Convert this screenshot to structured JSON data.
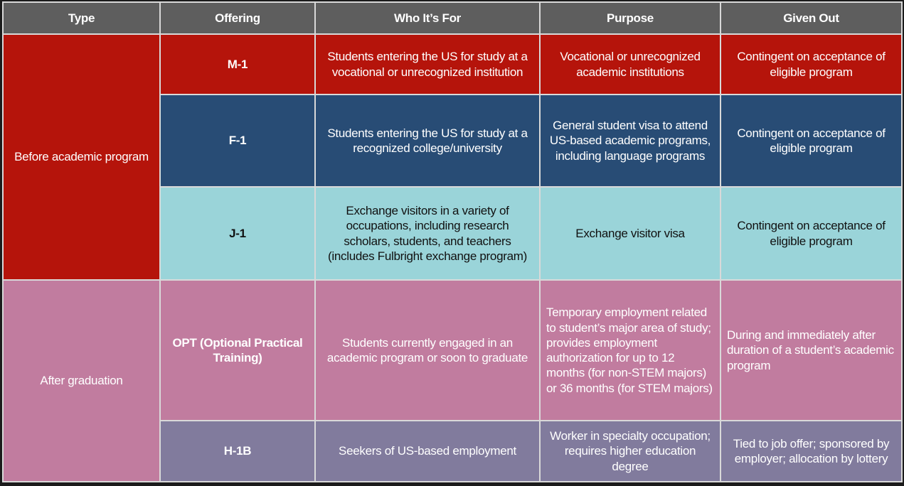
{
  "headers": {
    "type": "Type",
    "offering": "Offering",
    "who": "Who It’s For",
    "purpose": "Purpose",
    "given": "Given Out"
  },
  "groups": {
    "before": "Before academic program",
    "after": "After graduation"
  },
  "rows": [
    {
      "offering": "M-1",
      "who": "Students entering the US for study at a vocational or unrecognized institution",
      "purpose": "Vocational or unrecognized academic institutions",
      "given": "Contingent on acceptance of eligible program"
    },
    {
      "offering": "F-1",
      "who": "Students entering the US for study at a recognized college/university",
      "purpose": "General student visa to attend US-based academic programs, including language programs",
      "given": "Contingent on acceptance of eligible program"
    },
    {
      "offering": "J-1",
      "who": "Exchange visitors in a variety of occupations, including research scholars, students, and teachers (includes Fulbright exchange program)",
      "purpose": "Exchange visitor visa",
      "given": "Contingent on acceptance of eligible program"
    },
    {
      "offering": "OPT (Optional Practical Training)",
      "who": "Students currently engaged in an academic program or soon to graduate",
      "purpose": "Temporary employment related to student’s major area of study; provides employment authorization for up to 12 months (for non-STEM majors) or 36 months (for STEM majors)",
      "given": "During and immediately after duration of a student’s academic program"
    },
    {
      "offering": "H-1B",
      "who": "Seekers of US-based employment",
      "purpose": "Worker in specialty occupation; requires higher education degree",
      "given": "Tied to job offer; sponsored by employer; allocation by lottery"
    }
  ],
  "colors": {
    "header": "#5e5e5e",
    "before": "#222222",
    "after": "#444444",
    "m1": "#b5140b",
    "f1": "#284c75",
    "j1": "#9ad4d9",
    "opt": "#c17c9f",
    "h1b": "#817b9d"
  }
}
